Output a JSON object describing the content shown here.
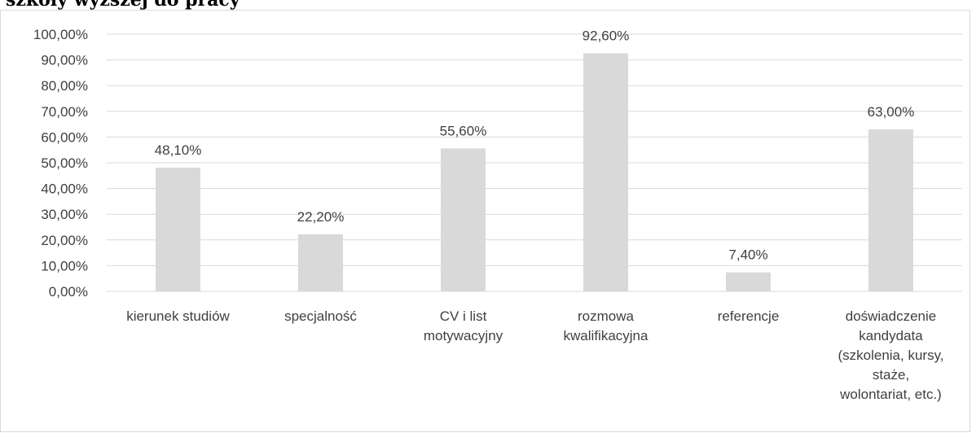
{
  "header": {
    "title_fragment": "szkoły wyższej do pracy"
  },
  "chart_data": {
    "type": "bar",
    "categories": [
      [
        "kierunek studiów"
      ],
      [
        "specjalność"
      ],
      [
        "CV i list",
        "motywacyjny"
      ],
      [
        "rozmowa",
        "kwalifikacyjna"
      ],
      [
        "referencje"
      ],
      [
        "doświadczenie",
        "kandydata",
        "(szkolenia, kursy,",
        "staże,",
        "wolontariat, etc.)"
      ]
    ],
    "values": [
      48.1,
      22.2,
      55.6,
      92.6,
      7.4,
      63.0
    ],
    "value_labels": [
      "48,10%",
      "22,20%",
      "55,60%",
      "92,60%",
      "7,40%",
      "63,00%"
    ],
    "y_ticks": [
      "0,00%",
      "10,00%",
      "20,00%",
      "30,00%",
      "40,00%",
      "50,00%",
      "60,00%",
      "70,00%",
      "80,00%",
      "90,00%",
      "100,00%"
    ],
    "ylim": [
      0,
      100
    ],
    "grid": true,
    "legend": "none",
    "colors": {
      "bar": "#d9d9d9",
      "grid": "#d9d9d9",
      "text": "#404040"
    }
  }
}
